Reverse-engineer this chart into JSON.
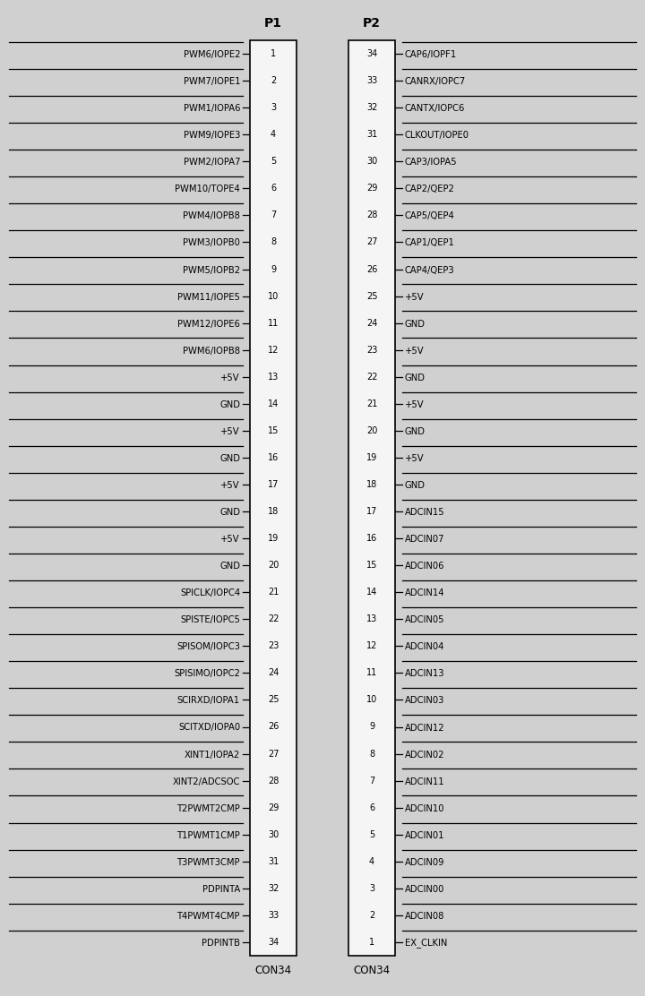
{
  "title": "",
  "p1_label": "P1",
  "p2_label": "P2",
  "con1_label": "CON34",
  "con2_label": "CON34",
  "p1_pins": 34,
  "p2_pins": 34,
  "left_labels": {
    "1": "PWM6/IOPE2",
    "2": "PWM7/IOPE1",
    "3": "PWM1/IOPA6",
    "4": "PWM9/IOPE3",
    "5": "PWM2/IOPA7",
    "6": "PWM10/TOPE4",
    "7": "PWM4/IOPB8",
    "8": "PWM3/IOPB0",
    "9": "PWM5/IOPB2",
    "10": "PWM11/IOPE5",
    "11": "PWM12/IOPE6",
    "12": "PWM6/IOPB8",
    "13": "+5V",
    "14": "GND",
    "15": "+5V",
    "16": "GND",
    "17": "+5V",
    "18": "GND",
    "19": "+5V",
    "20": "GND",
    "21": "SPICLK/IOPC4",
    "22": "SPISTE/IOPC5",
    "23": "SPISOM/IOPC3",
    "24": "SPISIMO/IOPC2",
    "25": "SCIRXD/IOPA1",
    "26": "SCITXD/IOPA0",
    "27": "XINT1/IOPA2",
    "28": "XINT2/ADCSOC",
    "29": "T2PWMT2CMP",
    "30": "T1PWMT1CMP",
    "31": "T3PWMT3CMP",
    "32": "PDPINTA",
    "33": "T4PWMT4CMP",
    "34": "PDPINTB"
  },
  "right_labels": {
    "34": "CAP6/IOPF1",
    "33": "CANRX/IOPC7",
    "32": "CANTX/IOPC6",
    "31": "CLKOUT/IOPE0",
    "30": "CAP3/IOPA5",
    "29": "CAP2/QEP2",
    "28": "CAP5/QEP4",
    "27": "CAP1/QEP1",
    "26": "CAP4/QEP3",
    "25": "+5V",
    "24": "GND",
    "23": "+5V",
    "22": "GND",
    "21": "+5V",
    "20": "GND",
    "19": "+5V",
    "18": "GND",
    "17": "ADCIN15",
    "16": "ADCIN07",
    "15": "ADCIN06",
    "14": "ADCIN14",
    "13": "ADCIN05",
    "12": "ADCIN04",
    "11": "ADCIN13",
    "10": "ADCIN03",
    "9": "ADCIN12",
    "8": "ADCIN02",
    "7": "ADCIN11",
    "6": "ADCIN10",
    "5": "ADCIN01",
    "4": "ADCIN09",
    "3": "ADCIN00",
    "2": "ADCIN08",
    "1": "EX_CLKIN"
  },
  "bg_color": "#d0d0d0",
  "connector_bg": "#f5f5f5",
  "text_color": "#000000",
  "line_color": "#000000",
  "figwidth": 7.2,
  "figheight": 11.12,
  "dpi": 100
}
